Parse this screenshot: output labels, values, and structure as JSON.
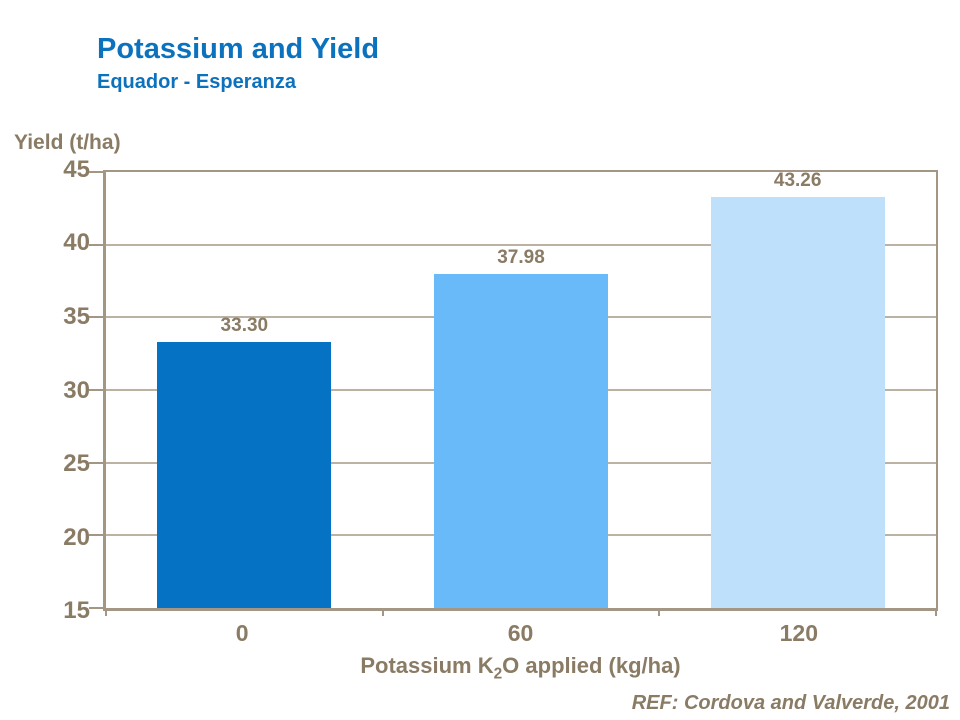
{
  "slide": {
    "title": "Potassium and Yield",
    "subtitle": "Equador - Esperanza",
    "reference": "REF: Cordova and Valverde, 2001"
  },
  "chart_data": {
    "type": "bar",
    "title": "Potassium and Yield",
    "subtitle": "Equador - Esperanza",
    "categories": [
      "0",
      "60",
      "120"
    ],
    "values": [
      33.3,
      37.98,
      43.26
    ],
    "value_labels": [
      "33.30",
      "37.98",
      "43.26"
    ],
    "bar_colors": [
      "#0672C4",
      "#68BAF9",
      "#BEE0FB"
    ],
    "ylabel": "Yield (t/ha)",
    "xlabel": "Potassium K2O applied (kg/ha)",
    "xlabel_parts": {
      "pre": "Potassium K",
      "sub": "2",
      "post": "O applied (kg/ha)"
    },
    "ylim": [
      15,
      45
    ],
    "yticks": [
      15,
      20,
      25,
      30,
      35,
      40,
      45
    ],
    "grid": true,
    "legend": false,
    "bar_width_fraction": 0.63
  },
  "colors": {
    "title_blue": "#0D72BE",
    "text_brown": "#8A7B65",
    "axis": "#A39685",
    "gridline": "#BCB2A3",
    "background": "#FFFFFF"
  }
}
